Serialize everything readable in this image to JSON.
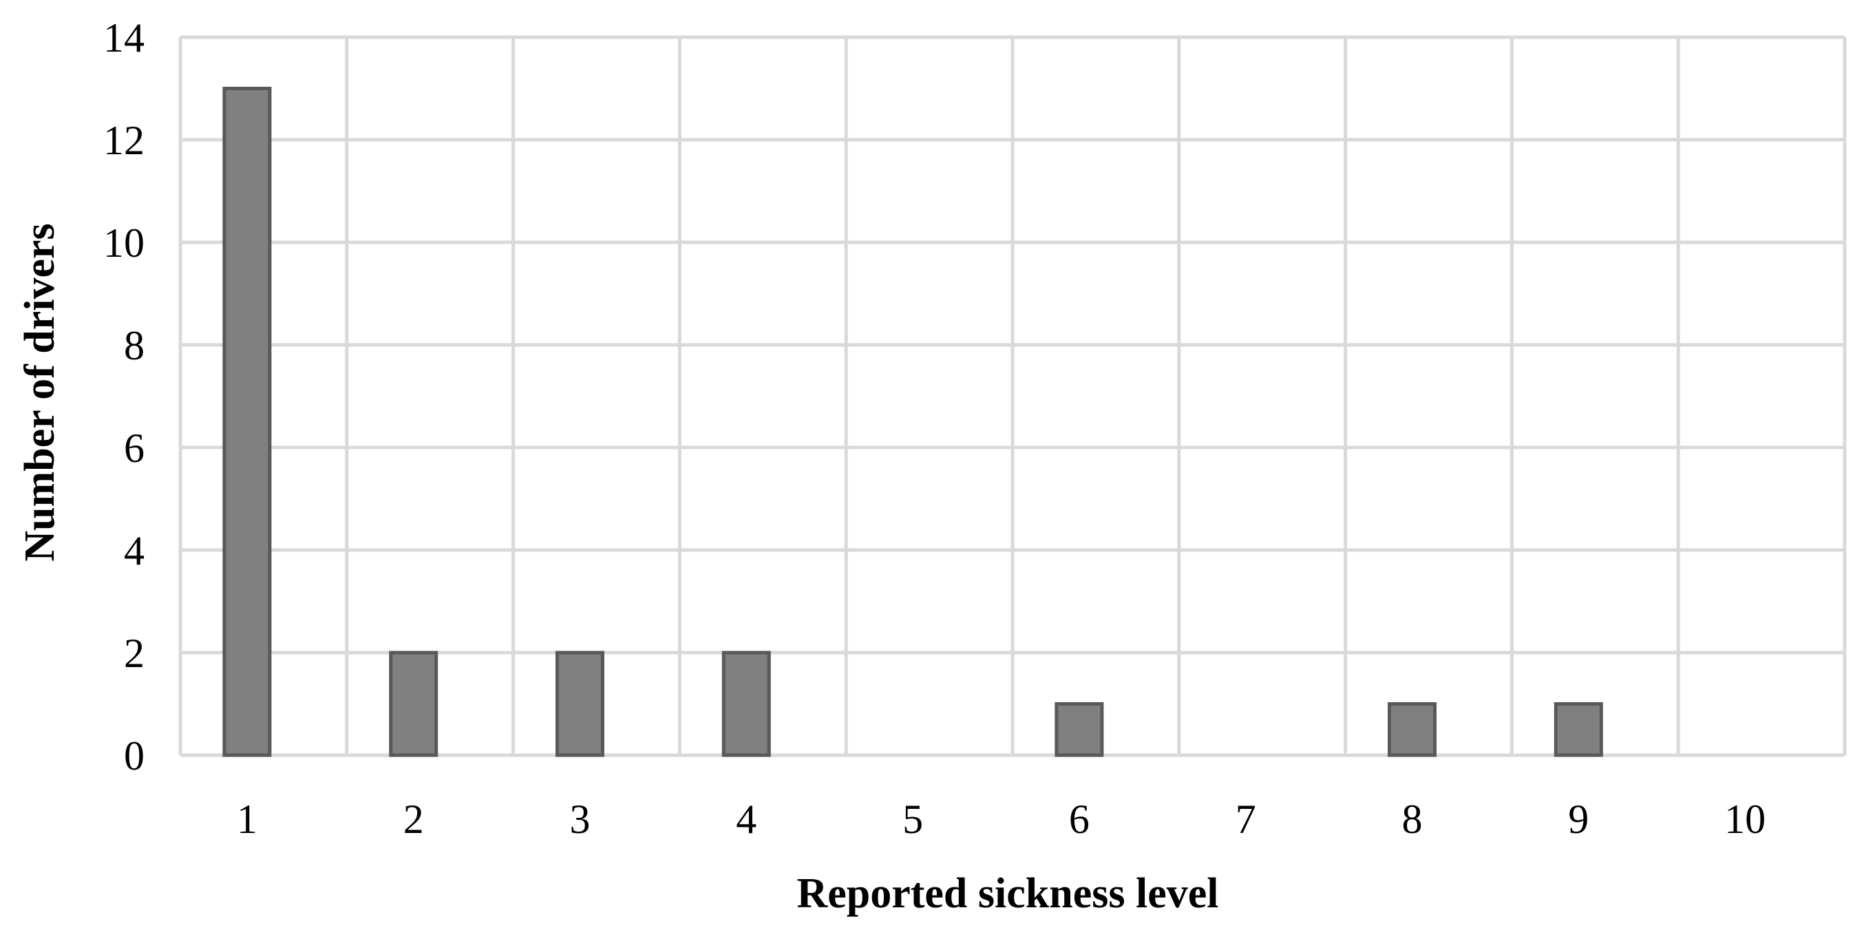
{
  "chart_data": {
    "type": "bar",
    "title": "",
    "xlabel": "Reported sickness level",
    "ylabel": "Number of drivers",
    "categories": [
      "1",
      "2",
      "3",
      "4",
      "5",
      "6",
      "7",
      "8",
      "9",
      "10"
    ],
    "series": [
      {
        "values": [
          13,
          2,
          2,
          2,
          0,
          1,
          0,
          1,
          1,
          0
        ]
      }
    ],
    "ylim": [
      0,
      14
    ],
    "yticks": [
      0,
      2,
      4,
      6,
      8,
      10,
      12,
      14
    ],
    "grid": true,
    "legend": "none",
    "colors": {
      "bar_fill": "#808080",
      "bar_stroke": "#595959",
      "grid": "#d9d9d9"
    }
  }
}
